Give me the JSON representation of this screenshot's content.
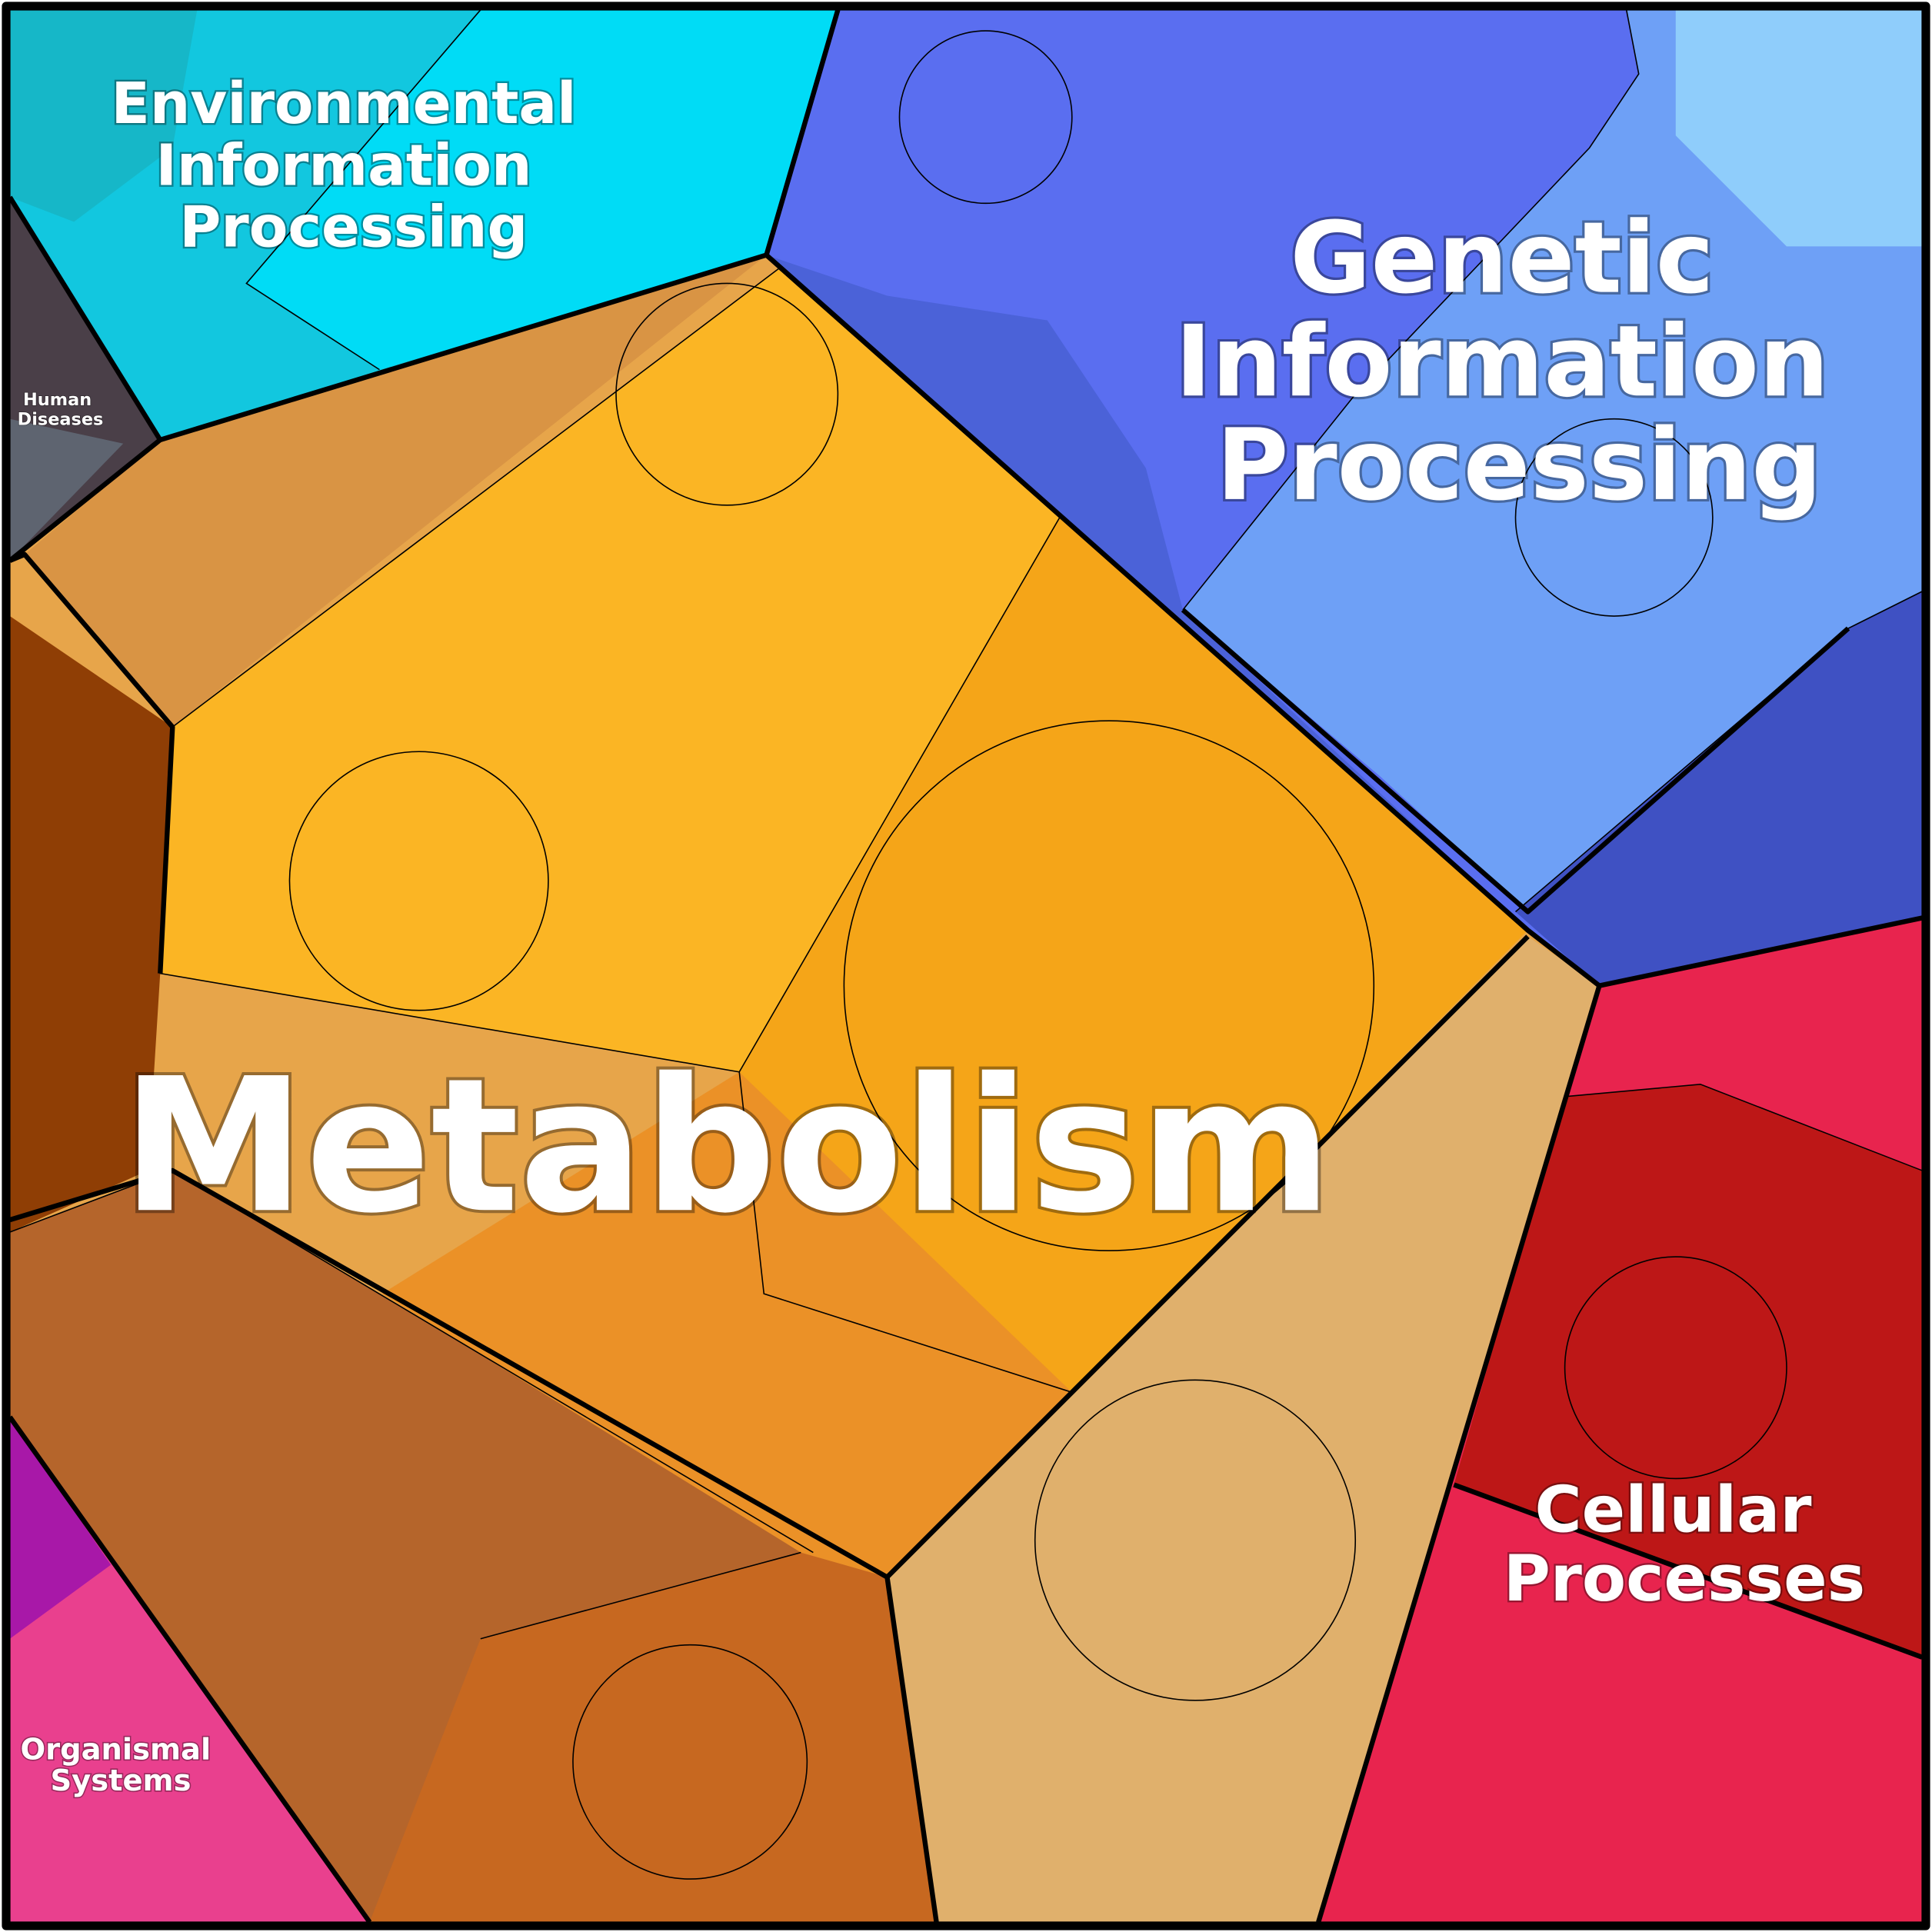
{
  "regions": [
    {
      "lines": [
        "Environmental",
        "Information",
        "Processing"
      ]
    },
    {
      "lines": [
        "Human",
        "Diseases"
      ]
    },
    {
      "lines": [
        "Genetic",
        "Information",
        "Processing"
      ]
    },
    {
      "lines": [
        "Metabolism"
      ]
    },
    {
      "lines": [
        "Cellular",
        "Processes"
      ]
    },
    {
      "lines": [
        "Organismal",
        "Systems"
      ]
    }
  ]
}
